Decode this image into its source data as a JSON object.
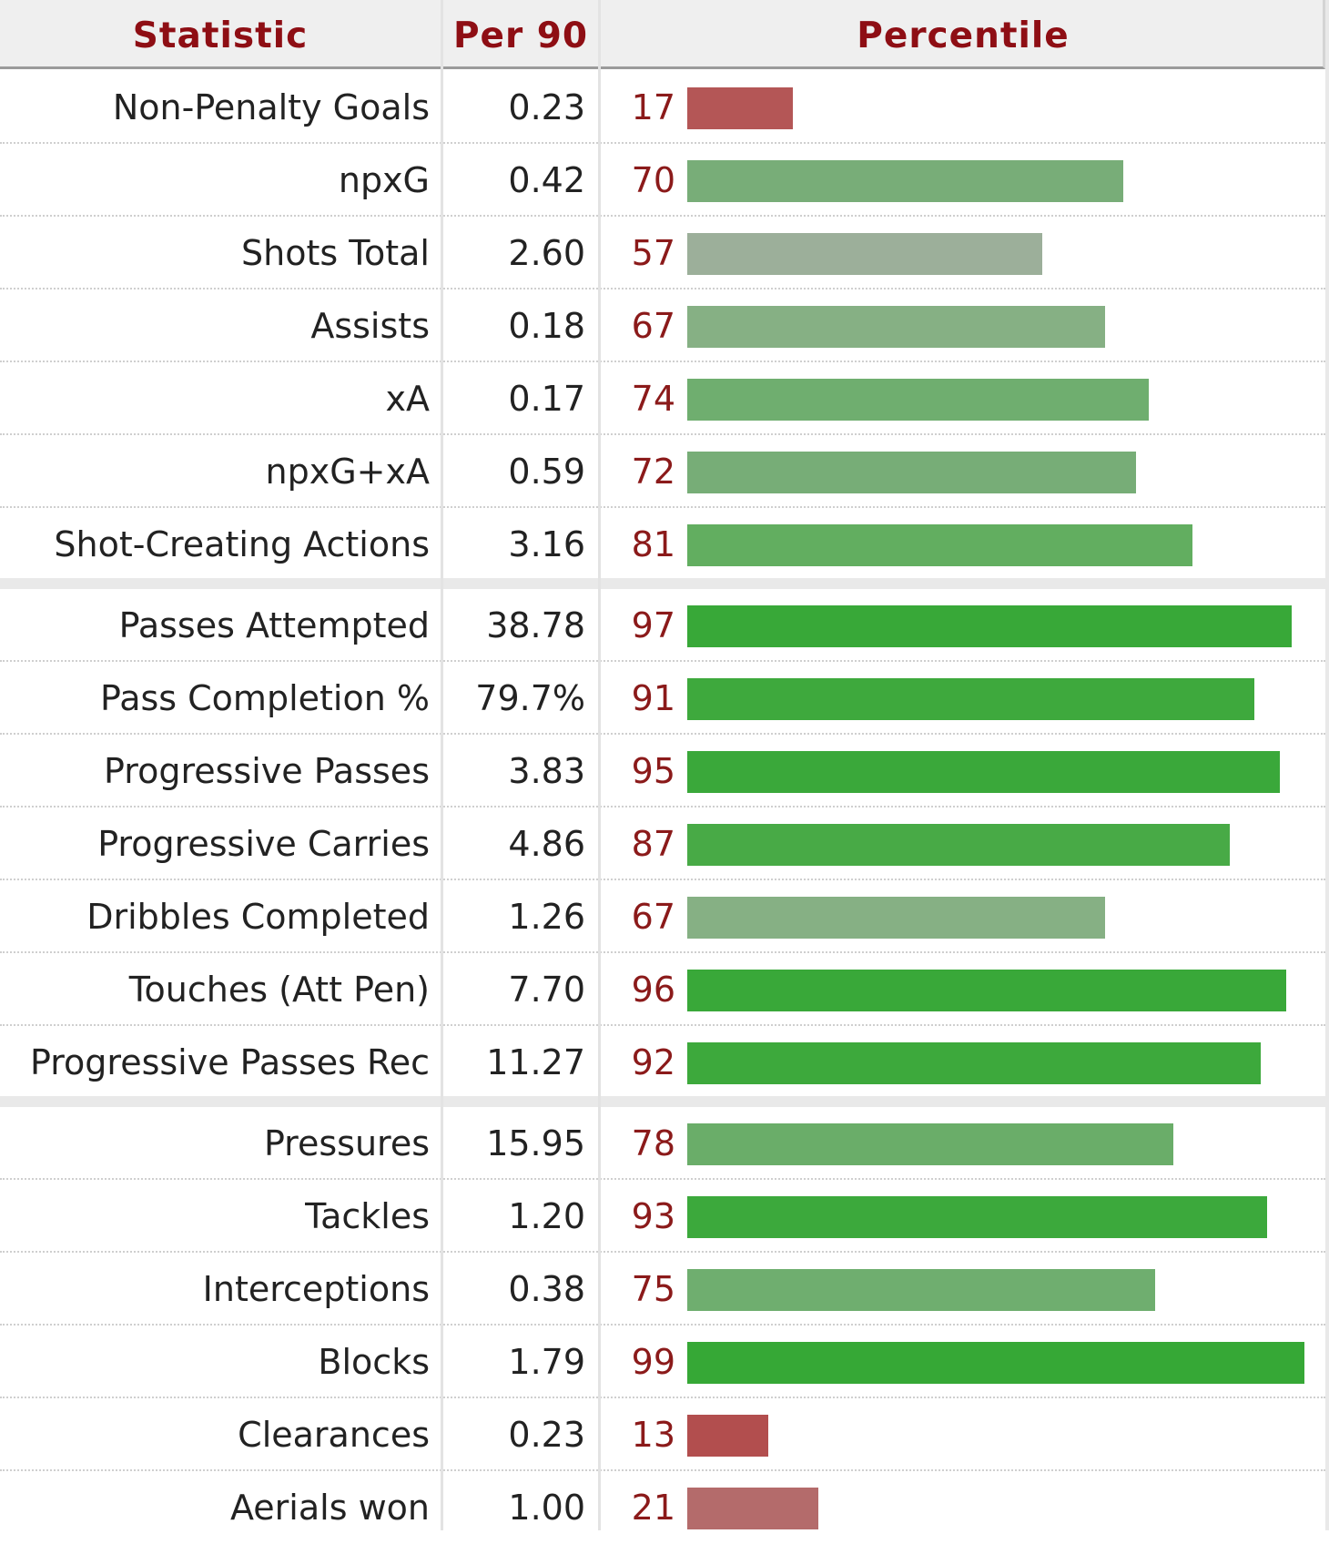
{
  "header": {
    "statistic": "Statistic",
    "per90": "Per 90",
    "percentile": "Percentile"
  },
  "colors": {
    "header_text": "#8e0e14",
    "percentile_text": "#8b1a1a",
    "strong_green": "#3aa83a",
    "muted_green": "#7fb17f",
    "grey_green": "#9fae9a",
    "red": "#b45252",
    "muted_red": "#b46b6b"
  },
  "groups": [
    {
      "rows": [
        {
          "stat": "Non-Penalty Goals",
          "per90": "0.23",
          "percentile": 17,
          "color": "#b45656"
        },
        {
          "stat": "npxG",
          "per90": "0.42",
          "percentile": 70,
          "color": "#78ad78"
        },
        {
          "stat": "Shots Total",
          "per90": "2.60",
          "percentile": 57,
          "color": "#9caf9a"
        },
        {
          "stat": "Assists",
          "per90": "0.18",
          "percentile": 67,
          "color": "#86b084"
        },
        {
          "stat": "xA",
          "per90": "0.17",
          "percentile": 74,
          "color": "#6fae6f"
        },
        {
          "stat": "npxG+xA",
          "per90": "0.59",
          "percentile": 72,
          "color": "#77ad77"
        },
        {
          "stat": "Shot-Creating Actions",
          "per90": "3.16",
          "percentile": 81,
          "color": "#62ae60"
        }
      ]
    },
    {
      "rows": [
        {
          "stat": "Passes Attempted",
          "per90": "38.78",
          "percentile": 97,
          "color": "#38a838"
        },
        {
          "stat": "Pass Completion %",
          "per90": "79.7%",
          "percentile": 91,
          "color": "#3ea93d"
        },
        {
          "stat": "Progressive Passes",
          "per90": "3.83",
          "percentile": 95,
          "color": "#3aa83a"
        },
        {
          "stat": "Progressive Carries",
          "per90": "4.86",
          "percentile": 87,
          "color": "#48aa46"
        },
        {
          "stat": "Dribbles Completed",
          "per90": "1.26",
          "percentile": 67,
          "color": "#86b084"
        },
        {
          "stat": "Touches (Att Pen)",
          "per90": "7.70",
          "percentile": 96,
          "color": "#39a839"
        },
        {
          "stat": "Progressive Passes Rec",
          "per90": "11.27",
          "percentile": 92,
          "color": "#3da93c"
        }
      ]
    },
    {
      "rows": [
        {
          "stat": "Pressures",
          "per90": "15.95",
          "percentile": 78,
          "color": "#6aad69"
        },
        {
          "stat": "Tackles",
          "per90": "1.20",
          "percentile": 93,
          "color": "#3ca93c"
        },
        {
          "stat": "Interceptions",
          "per90": "0.38",
          "percentile": 75,
          "color": "#6fae6f"
        },
        {
          "stat": "Blocks",
          "per90": "1.79",
          "percentile": 99,
          "color": "#36a836"
        },
        {
          "stat": "Clearances",
          "per90": "0.23",
          "percentile": 13,
          "color": "#b24e4e"
        },
        {
          "stat": "Aerials won",
          "per90": "1.00",
          "percentile": 21,
          "color": "#b46b6b"
        }
      ]
    }
  ]
}
